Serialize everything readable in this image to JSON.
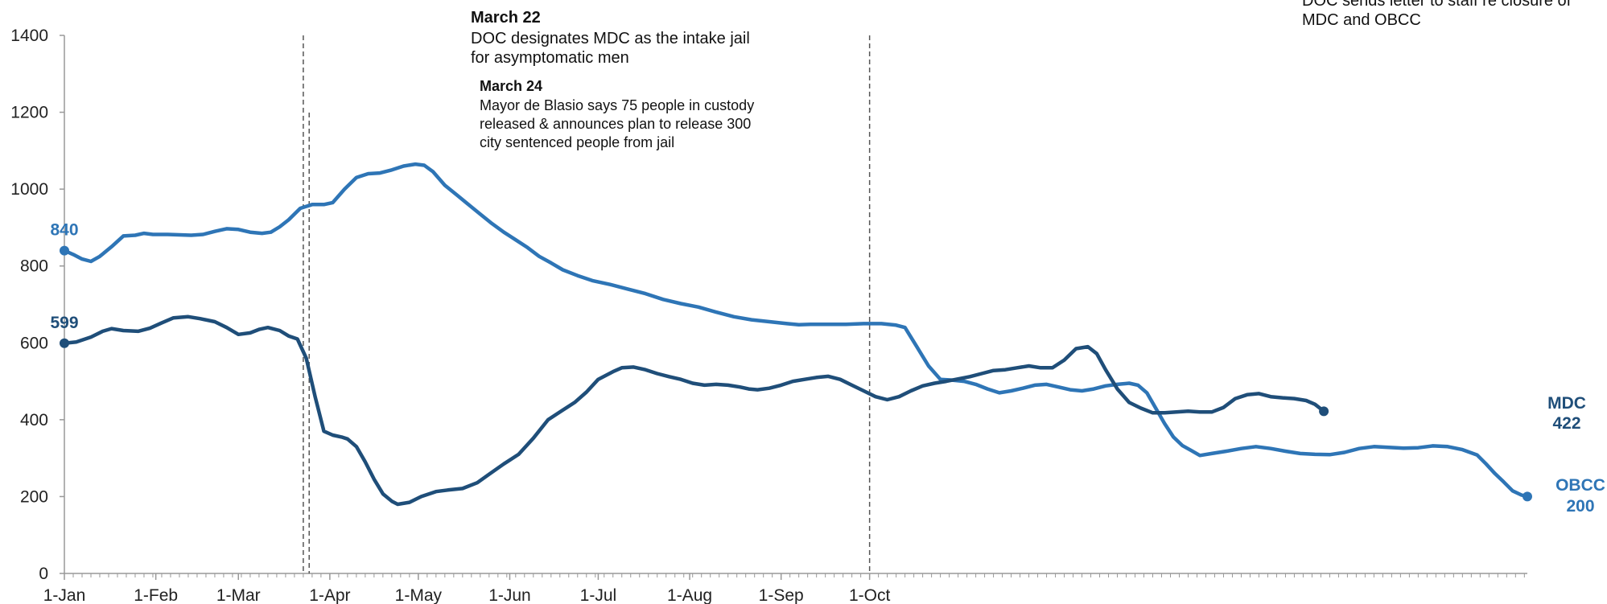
{
  "chart_data": {
    "type": "line",
    "title": "",
    "xlabel": "",
    "ylabel": "",
    "ylim": [
      0,
      1400
    ],
    "y_ticks": [
      0,
      200,
      400,
      600,
      800,
      1000,
      1200,
      1400
    ],
    "x_ticks": [
      "1-Jan",
      "1-Feb",
      "1-Mar",
      "1-Apr",
      "1-May",
      "1-Jun",
      "1-Jul",
      "1-Aug",
      "1-Sep",
      "1-Oct"
    ],
    "x_unit": "day of year 2020 (1 = 1-Jan)",
    "grid": false,
    "colors": {
      "MDC": "#1f4e79",
      "OBCC": "#2e75b6",
      "axis": "#999999",
      "marker_line": "#555555"
    },
    "series": [
      {
        "name": "MDC",
        "start_label": "599",
        "end_label_name": "MDC",
        "end_label_value": "422",
        "points": [
          [
            1,
            599
          ],
          [
            5,
            602
          ],
          [
            10,
            615
          ],
          [
            14,
            630
          ],
          [
            17,
            637
          ],
          [
            21,
            632
          ],
          [
            26,
            630
          ],
          [
            30,
            638
          ],
          [
            34,
            652
          ],
          [
            38,
            665
          ],
          [
            43,
            668
          ],
          [
            47,
            663
          ],
          [
            52,
            655
          ],
          [
            56,
            640
          ],
          [
            60,
            622
          ],
          [
            64,
            626
          ],
          [
            67,
            635
          ],
          [
            70,
            640
          ],
          [
            74,
            632
          ],
          [
            77,
            618
          ],
          [
            80,
            610
          ],
          [
            83,
            560
          ],
          [
            86,
            460
          ],
          [
            89,
            370
          ],
          [
            92,
            360
          ],
          [
            95,
            355
          ],
          [
            97,
            350
          ],
          [
            100,
            330
          ],
          [
            103,
            290
          ],
          [
            106,
            245
          ],
          [
            109,
            207
          ],
          [
            112,
            188
          ],
          [
            114,
            180
          ],
          [
            118,
            185
          ],
          [
            122,
            200
          ],
          [
            127,
            213
          ],
          [
            131,
            217
          ],
          [
            136,
            221
          ],
          [
            141,
            236
          ],
          [
            145,
            258
          ],
          [
            150,
            285
          ],
          [
            155,
            310
          ],
          [
            160,
            352
          ],
          [
            165,
            400
          ],
          [
            170,
            425
          ],
          [
            174,
            445
          ],
          [
            178,
            472
          ],
          [
            182,
            505
          ],
          [
            187,
            525
          ],
          [
            190,
            535
          ],
          [
            194,
            537
          ],
          [
            198,
            530
          ],
          [
            202,
            520
          ],
          [
            206,
            512
          ],
          [
            210,
            505
          ],
          [
            214,
            495
          ],
          [
            218,
            490
          ],
          [
            222,
            492
          ],
          [
            226,
            490
          ],
          [
            230,
            485
          ],
          [
            233,
            480
          ],
          [
            236,
            478
          ],
          [
            240,
            482
          ],
          [
            244,
            490
          ],
          [
            248,
            500
          ],
          [
            252,
            505
          ],
          [
            256,
            510
          ],
          [
            260,
            513
          ],
          [
            264,
            505
          ],
          [
            268,
            490
          ],
          [
            272,
            475
          ],
          [
            276,
            460
          ],
          [
            280,
            452
          ],
          [
            284,
            460
          ],
          [
            288,
            475
          ],
          [
            292,
            488
          ],
          [
            296,
            495
          ],
          [
            300,
            500
          ],
          [
            304,
            506
          ],
          [
            308,
            512
          ],
          [
            312,
            520
          ],
          [
            316,
            528
          ],
          [
            320,
            530
          ],
          [
            324,
            535
          ],
          [
            328,
            540
          ],
          [
            332,
            535
          ],
          [
            336,
            535
          ],
          [
            340,
            555
          ],
          [
            344,
            585
          ],
          [
            348,
            590
          ],
          [
            351,
            572
          ],
          [
            354,
            530
          ],
          [
            358,
            480
          ],
          [
            362,
            445
          ],
          [
            366,
            430
          ],
          [
            370,
            418
          ],
          [
            374,
            418
          ],
          [
            378,
            420
          ],
          [
            382,
            422
          ],
          [
            386,
            420
          ],
          [
            390,
            420
          ],
          [
            394,
            432
          ],
          [
            398,
            455
          ],
          [
            402,
            465
          ],
          [
            406,
            468
          ],
          [
            410,
            460
          ],
          [
            414,
            457
          ],
          [
            418,
            455
          ],
          [
            422,
            450
          ],
          [
            425,
            440
          ],
          [
            428,
            422
          ]
        ]
      },
      {
        "name": "OBCC",
        "start_label": "840",
        "end_label_name": "OBCC",
        "end_label_value": "200",
        "points": [
          [
            1,
            840
          ],
          [
            4,
            830
          ],
          [
            7,
            818
          ],
          [
            10,
            812
          ],
          [
            13,
            825
          ],
          [
            17,
            850
          ],
          [
            21,
            878
          ],
          [
            25,
            880
          ],
          [
            28,
            885
          ],
          [
            31,
            882
          ],
          [
            36,
            882
          ],
          [
            40,
            881
          ],
          [
            44,
            880
          ],
          [
            48,
            882
          ],
          [
            52,
            890
          ],
          [
            56,
            897
          ],
          [
            60,
            895
          ],
          [
            64,
            888
          ],
          [
            68,
            885
          ],
          [
            71,
            888
          ],
          [
            74,
            902
          ],
          [
            77,
            920
          ],
          [
            81,
            950
          ],
          [
            85,
            960
          ],
          [
            89,
            960
          ],
          [
            92,
            965
          ],
          [
            96,
            1000
          ],
          [
            100,
            1030
          ],
          [
            104,
            1040
          ],
          [
            108,
            1042
          ],
          [
            112,
            1050
          ],
          [
            116,
            1060
          ],
          [
            120,
            1065
          ],
          [
            123,
            1062
          ],
          [
            126,
            1045
          ],
          [
            130,
            1010
          ],
          [
            134,
            985
          ],
          [
            138,
            960
          ],
          [
            142,
            935
          ],
          [
            146,
            910
          ],
          [
            150,
            888
          ],
          [
            154,
            868
          ],
          [
            158,
            848
          ],
          [
            162,
            825
          ],
          [
            166,
            808
          ],
          [
            170,
            790
          ],
          [
            175,
            775
          ],
          [
            180,
            762
          ],
          [
            186,
            752
          ],
          [
            192,
            740
          ],
          [
            198,
            728
          ],
          [
            204,
            713
          ],
          [
            210,
            702
          ],
          [
            216,
            693
          ],
          [
            222,
            680
          ],
          [
            228,
            668
          ],
          [
            234,
            660
          ],
          [
            240,
            655
          ],
          [
            246,
            650
          ],
          [
            250,
            647
          ],
          [
            254,
            648
          ],
          [
            260,
            648
          ],
          [
            266,
            648
          ],
          [
            272,
            650
          ],
          [
            278,
            650
          ],
          [
            283,
            646
          ],
          [
            286,
            640
          ],
          [
            290,
            590
          ],
          [
            294,
            540
          ],
          [
            298,
            505
          ],
          [
            302,
            503
          ],
          [
            306,
            500
          ],
          [
            310,
            492
          ],
          [
            314,
            480
          ],
          [
            318,
            470
          ],
          [
            322,
            475
          ],
          [
            326,
            482
          ],
          [
            330,
            490
          ],
          [
            334,
            492
          ],
          [
            338,
            485
          ],
          [
            342,
            478
          ],
          [
            346,
            475
          ],
          [
            350,
            480
          ],
          [
            354,
            488
          ],
          [
            358,
            492
          ],
          [
            362,
            495
          ],
          [
            365,
            490
          ],
          [
            368,
            470
          ],
          [
            371,
            430
          ],
          [
            374,
            390
          ],
          [
            377,
            355
          ],
          [
            380,
            333
          ],
          [
            383,
            320
          ],
          [
            386,
            307
          ],
          [
            390,
            312
          ],
          [
            395,
            318
          ],
          [
            400,
            325
          ],
          [
            405,
            330
          ],
          [
            410,
            325
          ],
          [
            415,
            318
          ],
          [
            420,
            312
          ],
          [
            425,
            310
          ],
          [
            430,
            309
          ],
          [
            435,
            315
          ],
          [
            440,
            325
          ],
          [
            445,
            330
          ],
          [
            450,
            328
          ],
          [
            455,
            326
          ],
          [
            460,
            327
          ],
          [
            465,
            332
          ],
          [
            470,
            330
          ],
          [
            475,
            322
          ],
          [
            480,
            308
          ],
          [
            483,
            285
          ],
          [
            486,
            260
          ],
          [
            489,
            238
          ],
          [
            492,
            215
          ],
          [
            495,
            204
          ],
          [
            497,
            200
          ]
        ]
      }
    ],
    "annotations": [
      {
        "date": "March 22",
        "title": "March 22",
        "lines": [
          "DOC designates MDC as the intake jail",
          "for asymptomatic men"
        ]
      },
      {
        "date": "March 24",
        "title": "March 24",
        "lines": [
          "Mayor de Blasio says 75 people in custody",
          "released & announces plan to release 300",
          "city sentenced people from jail"
        ]
      },
      {
        "date": "1-Oct",
        "title": "",
        "lines": [
          "DOC sends letter to staff re closure of",
          "MDC and OBCC"
        ]
      }
    ]
  }
}
